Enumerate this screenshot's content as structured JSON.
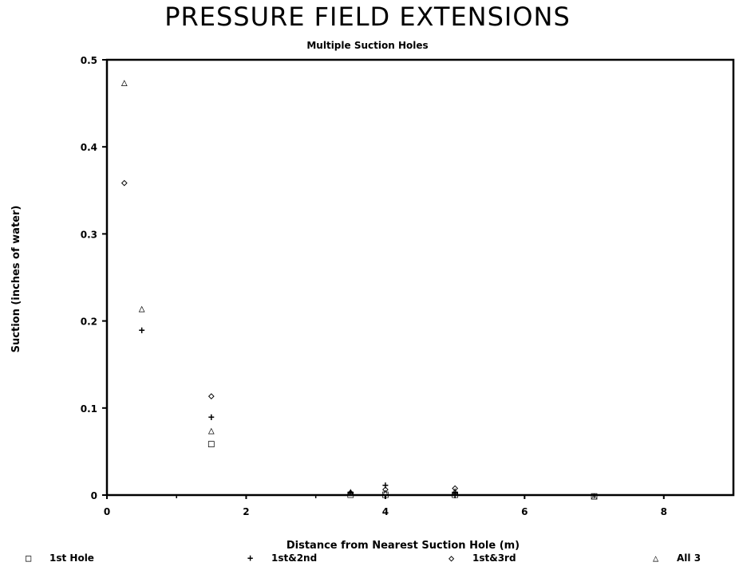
{
  "chart_data": {
    "type": "scatter",
    "title": "PRESSURE FIELD EXTENSIONS",
    "subtitle": "Multiple Suction Holes",
    "xlabel": "Distance from Nearest Suction Hole (m)",
    "ylabel": "Suction (inches of water)",
    "xlim": [
      0,
      9
    ],
    "ylim": [
      0,
      0.5
    ],
    "xticks": [
      "0",
      "2",
      "4",
      "6",
      "8"
    ],
    "yticks": [
      "0",
      "0.1",
      "0.2",
      "0.3",
      "0.4",
      "0.5"
    ],
    "xtick_values": [
      0,
      2,
      4,
      6,
      8
    ],
    "ytick_values": [
      0,
      0.1,
      0.2,
      0.3,
      0.4,
      0.5
    ],
    "grid": false,
    "legend_position": "bottom",
    "series": [
      {
        "name": "1st Hole",
        "symbol": "□",
        "points": [
          [
            1.5,
            0.06
          ],
          [
            3.5,
            0.002
          ],
          [
            4.0,
            0.002
          ],
          [
            5.0,
            0.002
          ],
          [
            7.0,
            0.0
          ]
        ]
      },
      {
        "name": "1st&2nd",
        "symbol": "+",
        "points": [
          [
            0.5,
            0.19
          ],
          [
            1.5,
            0.09
          ],
          [
            3.5,
            0.003
          ],
          [
            4.0,
            0.012
          ],
          [
            5.0,
            0.003
          ]
        ]
      },
      {
        "name": "1st&3rd",
        "symbol": "◇",
        "points": [
          [
            0.25,
            0.36
          ],
          [
            1.5,
            0.115
          ],
          [
            3.5,
            0.004
          ],
          [
            4.0,
            0.008
          ],
          [
            5.0,
            0.009
          ]
        ]
      },
      {
        "name": "All 3",
        "symbol": "△",
        "points": [
          [
            0.25,
            0.475
          ],
          [
            0.5,
            0.215
          ],
          [
            1.5,
            0.075
          ],
          [
            3.5,
            0.005
          ],
          [
            4.0,
            0.004
          ],
          [
            5.0,
            0.006
          ],
          [
            7.0,
            0.0
          ]
        ]
      }
    ]
  }
}
